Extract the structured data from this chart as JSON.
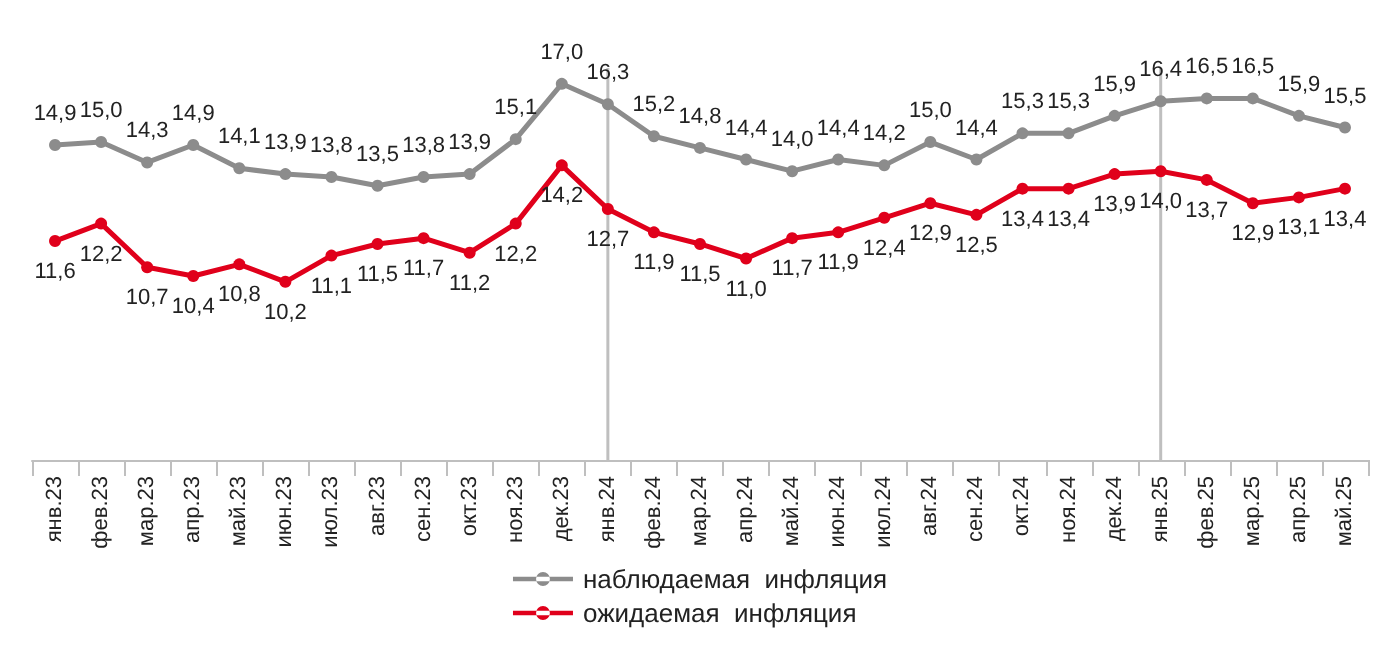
{
  "chart_data": {
    "type": "line",
    "categories": [
      "янв.23",
      "фев.23",
      "мар.23",
      "апр.23",
      "май.23",
      "июн.23",
      "июл.23",
      "авг.23",
      "сен.23",
      "окт.23",
      "ноя.23",
      "дек.23",
      "янв.24",
      "фев.24",
      "мар.24",
      "апр.24",
      "май.24",
      "июн.24",
      "июл.24",
      "авг.24",
      "сен.24",
      "окт.24",
      "ноя.24",
      "дек.24",
      "янв.25",
      "фев.25",
      "мар.25",
      "апр.25",
      "май.25"
    ],
    "series": [
      {
        "name": "наблюдаемая  инфляция",
        "color": "#8c8c8c",
        "values": [
          14.9,
          15.0,
          14.3,
          14.9,
          14.1,
          13.9,
          13.8,
          13.5,
          13.8,
          13.9,
          15.1,
          17.0,
          16.3,
          15.2,
          14.8,
          14.4,
          14.0,
          14.4,
          14.2,
          15.0,
          14.4,
          15.3,
          15.3,
          15.9,
          16.4,
          16.5,
          16.5,
          15.9,
          15.5
        ],
        "value_labels": [
          "14,9",
          "15,0",
          "14,3",
          "14,9",
          "14,1",
          "13,9",
          "13,8",
          "13,5",
          "13,8",
          "13,9",
          "15,1",
          "17,0",
          "16,3",
          "15,2",
          "14,8",
          "14,4",
          "14,0",
          "14,4",
          "14,2",
          "15,0",
          "14,4",
          "15,3",
          "15,3",
          "15,9",
          "16,4",
          "16,5",
          "16,5",
          "15,9",
          "15,5"
        ]
      },
      {
        "name": "ожидаемая  инфляция",
        "color": "#e0001b",
        "values": [
          11.6,
          12.2,
          10.7,
          10.4,
          10.8,
          10.2,
          11.1,
          11.5,
          11.7,
          11.2,
          12.2,
          14.2,
          12.7,
          11.9,
          11.5,
          11.0,
          11.7,
          11.9,
          12.4,
          12.9,
          12.5,
          13.4,
          13.4,
          13.9,
          14.0,
          13.7,
          12.9,
          13.1,
          13.4
        ],
        "value_labels": [
          "11,6",
          "12,2",
          "10,7",
          "10,4",
          "10,8",
          "10,2",
          "11,1",
          "11,5",
          "11,7",
          "11,2",
          "12,2",
          "14,2",
          "12,7",
          "11,9",
          "11,5",
          "11,0",
          "11,7",
          "11,9",
          "12,4",
          "12,9",
          "12,5",
          "13,4",
          "13,4",
          "13,9",
          "14,0",
          "13,7",
          "12,9",
          "13,1",
          "13,4"
        ]
      }
    ],
    "ref_lines": [
      {
        "axis": "x",
        "value": "янв.24",
        "color": "#bfbfbf"
      },
      {
        "axis": "x",
        "value": "янв.25",
        "color": "#bfbfbf"
      }
    ],
    "marker": "circle",
    "line_style": "solid",
    "legend": "bottom",
    "grid": false,
    "tick_labels": "x"
  }
}
